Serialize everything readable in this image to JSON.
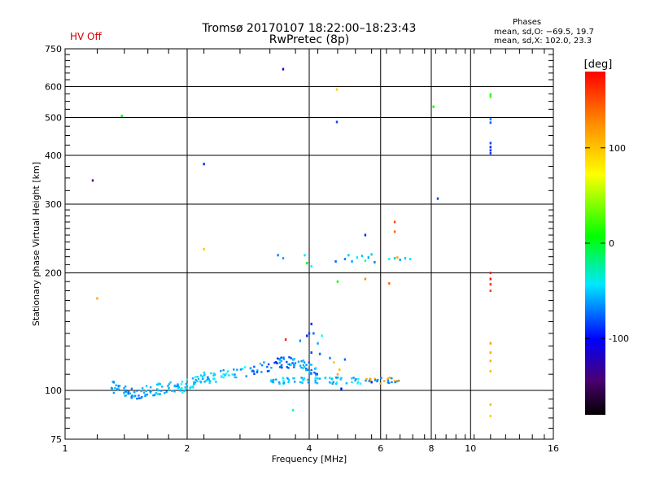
{
  "status": {
    "hv_text": "HV Off",
    "hv_color": "#d00000"
  },
  "header": {
    "line1": "Tromsø 20170107 18:22:00–18:23:43",
    "line2": "RwPretec (8p)"
  },
  "stats": {
    "title": "Phases",
    "line1": "mean, sd,O: −69.5, 19.7",
    "line2": "mean, sd,X: 102.0, 23.3"
  },
  "chart_data": {
    "type": "scatter",
    "xlabel": "Frequency [MHz]",
    "ylabel": "Stationary phase Virtual Height [km]",
    "xscale": "log",
    "yscale": "log",
    "xlim": [
      1,
      16
    ],
    "ylim": [
      75,
      750
    ],
    "xticks": [
      1,
      2,
      4,
      6,
      8,
      10,
      16
    ],
    "xtick_labels": [
      "1",
      "2",
      "4",
      "6",
      "8",
      "10",
      "16"
    ],
    "yticks": [
      75,
      100,
      200,
      300,
      400,
      500,
      600,
      750
    ],
    "ytick_labels": [
      "75",
      "100",
      "200",
      "300",
      "400",
      "500",
      "600",
      "750"
    ],
    "grid": true,
    "colorbar": {
      "label": "[deg]",
      "range": [
        -180,
        180
      ],
      "ticks": [
        100,
        0,
        -100
      ],
      "tick_labels": [
        "100",
        "0",
        "-100"
      ]
    },
    "points": [
      {
        "f": 1.17,
        "h": 345,
        "p": -150
      },
      {
        "f": 1.38,
        "h": 505,
        "p": 20
      },
      {
        "f": 2.2,
        "h": 380,
        "p": -110
      },
      {
        "f": 3.45,
        "h": 665,
        "p": -120
      },
      {
        "f": 4.68,
        "h": 590,
        "p": 120
      },
      {
        "f": 4.68,
        "h": 487,
        "p": -100
      },
      {
        "f": 8.1,
        "h": 533,
        "p": 30
      },
      {
        "f": 8.3,
        "h": 310,
        "p": -100
      },
      {
        "f": 2.2,
        "h": 230,
        "p": 120
      },
      {
        "f": 1.2,
        "h": 172,
        "p": 130
      },
      {
        "f": 11.2,
        "h": 573,
        "p": 40
      },
      {
        "f": 11.2,
        "h": 565,
        "p": 50
      },
      {
        "f": 11.2,
        "h": 495,
        "p": -80
      },
      {
        "f": 11.2,
        "h": 485,
        "p": -90
      },
      {
        "f": 11.2,
        "h": 430,
        "p": -100
      },
      {
        "f": 11.2,
        "h": 420,
        "p": -110
      },
      {
        "f": 11.2,
        "h": 412,
        "p": -105
      },
      {
        "f": 11.2,
        "h": 405,
        "p": -100
      },
      {
        "f": 11.2,
        "h": 200,
        "p": 170
      },
      {
        "f": 11.2,
        "h": 193,
        "p": 175
      },
      {
        "f": 11.2,
        "h": 187,
        "p": 165
      },
      {
        "f": 11.2,
        "h": 180,
        "p": 160
      },
      {
        "f": 11.2,
        "h": 132,
        "p": 135
      },
      {
        "f": 11.2,
        "h": 125,
        "p": 130
      },
      {
        "f": 11.2,
        "h": 119,
        "p": 128
      },
      {
        "f": 11.2,
        "h": 112,
        "p": 125
      },
      {
        "f": 11.2,
        "h": 92,
        "p": 125
      },
      {
        "f": 11.2,
        "h": 86,
        "p": 120
      },
      {
        "f": 3.5,
        "h": 135,
        "p": 170
      },
      {
        "f": 3.35,
        "h": 222,
        "p": -80
      },
      {
        "f": 3.45,
        "h": 218,
        "p": -70
      },
      {
        "f": 3.9,
        "h": 222,
        "p": -50
      },
      {
        "f": 3.95,
        "h": 212,
        "p": 30
      },
      {
        "f": 4.05,
        "h": 208,
        "p": -40
      },
      {
        "f": 4.65,
        "h": 214,
        "p": -90
      },
      {
        "f": 4.9,
        "h": 217,
        "p": -80
      },
      {
        "f": 5.0,
        "h": 222,
        "p": -60
      },
      {
        "f": 5.1,
        "h": 214,
        "p": -70
      },
      {
        "f": 5.25,
        "h": 219,
        "p": -50
      },
      {
        "f": 5.4,
        "h": 221,
        "p": -60
      },
      {
        "f": 5.5,
        "h": 215,
        "p": -30
      },
      {
        "f": 5.6,
        "h": 219,
        "p": -70
      },
      {
        "f": 5.7,
        "h": 223,
        "p": -60
      },
      {
        "f": 5.8,
        "h": 213,
        "p": -80
      },
      {
        "f": 6.3,
        "h": 217,
        "p": -40
      },
      {
        "f": 6.5,
        "h": 218,
        "p": -60
      },
      {
        "f": 6.6,
        "h": 219,
        "p": 130
      },
      {
        "f": 6.7,
        "h": 216,
        "p": -70
      },
      {
        "f": 6.9,
        "h": 218,
        "p": -60
      },
      {
        "f": 7.1,
        "h": 217,
        "p": -50
      },
      {
        "f": 5.5,
        "h": 250,
        "p": -110
      },
      {
        "f": 6.5,
        "h": 270,
        "p": 160
      },
      {
        "f": 6.5,
        "h": 255,
        "p": 150
      },
      {
        "f": 4.7,
        "h": 190,
        "p": 30
      },
      {
        "f": 5.5,
        "h": 193,
        "p": 140
      },
      {
        "f": 6.3,
        "h": 188,
        "p": 150
      },
      {
        "f": 3.65,
        "h": 89,
        "p": -30
      },
      {
        "f": 4.8,
        "h": 101,
        "p": -110
      },
      {
        "f": 4.05,
        "h": 148,
        "p": -110
      },
      {
        "f": 4.0,
        "h": 140,
        "p": -100
      },
      {
        "f": 4.1,
        "h": 140,
        "p": -90
      },
      {
        "f": 3.95,
        "h": 138,
        "p": -110
      },
      {
        "f": 4.3,
        "h": 138,
        "p": -40
      },
      {
        "f": 3.8,
        "h": 134,
        "p": -80
      },
      {
        "f": 4.2,
        "h": 132,
        "p": -70
      },
      {
        "f": 4.05,
        "h": 125,
        "p": -100
      },
      {
        "f": 4.25,
        "h": 124,
        "p": -90
      },
      {
        "f": 4.6,
        "h": 118,
        "p": 120
      },
      {
        "f": 4.9,
        "h": 120,
        "p": -90
      },
      {
        "f": 4.5,
        "h": 121,
        "p": -80
      },
      {
        "f": 4.75,
        "h": 113,
        "p": 125
      },
      {
        "f": 4.7,
        "h": 110,
        "p": 130
      },
      {
        "f": 5.7,
        "h": 105,
        "p": -110
      }
    ]
  }
}
